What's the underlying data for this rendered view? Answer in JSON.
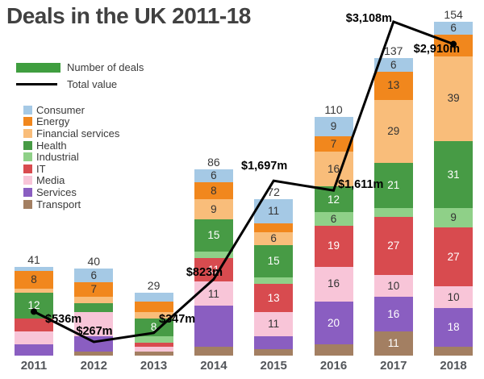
{
  "title": "Deals in the UK 2011-18",
  "legend": {
    "deals_label": "Number of deals",
    "value_label": "Total value"
  },
  "chart_data": {
    "type": "bar",
    "stacked": true,
    "line_overlay": true,
    "x": [
      "2011",
      "2012",
      "2013",
      "2014",
      "2015",
      "2016",
      "2017",
      "2018"
    ],
    "totals": [
      41,
      40,
      29,
      86,
      72,
      110,
      137,
      154
    ],
    "series": [
      {
        "name": "Consumer",
        "color": "#a5c9e5",
        "text": "dark",
        "values": [
          2,
          6,
          4,
          6,
          11,
          9,
          6,
          6
        ],
        "labels": [
          "",
          "6",
          "",
          "6",
          "11",
          "9",
          "6",
          "6"
        ]
      },
      {
        "name": "Energy",
        "color": "#f1871d",
        "text": "dark",
        "values": [
          8,
          7,
          5,
          8,
          4,
          7,
          13,
          10
        ],
        "labels": [
          "8",
          "7",
          "",
          "8",
          "",
          "7",
          "13",
          ""
        ]
      },
      {
        "name": "Financial services",
        "color": "#f9bd7a",
        "text": "dark",
        "values": [
          2,
          3,
          3,
          9,
          6,
          16,
          29,
          39
        ],
        "labels": [
          "",
          "",
          "",
          "9",
          "6",
          "16",
          "29",
          "39"
        ]
      },
      {
        "name": "Health",
        "color": "#479b45",
        "text": "light",
        "values": [
          12,
          4,
          8,
          15,
          15,
          12,
          21,
          31
        ],
        "labels": [
          "12",
          "",
          "8",
          "15",
          "15",
          "12",
          "21",
          "31"
        ]
      },
      {
        "name": "Industrial",
        "color": "#8fd088",
        "text": "dark",
        "values": [
          0,
          0,
          3,
          3,
          3,
          6,
          4,
          9
        ],
        "labels": [
          "",
          "",
          "",
          "",
          "",
          "6",
          "",
          "9"
        ]
      },
      {
        "name": "IT",
        "color": "#d84b4f",
        "text": "light",
        "values": [
          6,
          0,
          2,
          11,
          13,
          19,
          27,
          27
        ],
        "labels": [
          "",
          "",
          "",
          "11",
          "13",
          "19",
          "27",
          "27"
        ]
      },
      {
        "name": "Media",
        "color": "#f8c5d8",
        "text": "dark",
        "values": [
          6,
          11,
          2,
          11,
          11,
          16,
          10,
          10
        ],
        "labels": [
          "",
          "",
          "",
          "11",
          "11",
          "16",
          "10",
          "10"
        ]
      },
      {
        "name": "Services",
        "color": "#8a5ec1",
        "text": "light",
        "values": [
          5,
          7,
          0,
          19,
          6,
          20,
          16,
          18
        ],
        "labels": [
          "",
          "",
          "",
          "",
          "",
          "20",
          "16",
          "18"
        ]
      },
      {
        "name": "Transport",
        "color": "#a37f62",
        "text": "light",
        "values": [
          0,
          2,
          2,
          4,
          3,
          5,
          11,
          4
        ],
        "labels": [
          "",
          "",
          "",
          "",
          "",
          "",
          "11",
          ""
        ]
      }
    ],
    "line": {
      "name": "Total value",
      "color": "#000000",
      "values_m": [
        536,
        267,
        347,
        823,
        1697,
        1611,
        3108,
        2910
      ],
      "labels": [
        "$536m",
        "$267m",
        "$347m",
        "$823m",
        "$1,697m",
        "$1,611m",
        "$3,108m",
        "$2,910m"
      ]
    }
  }
}
